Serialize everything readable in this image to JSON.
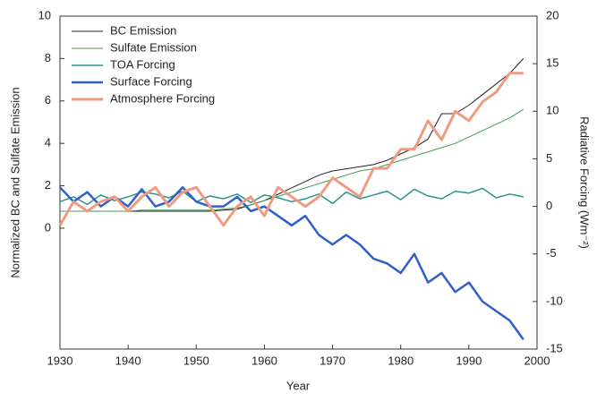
{
  "chart_data": {
    "type": "line",
    "xlabel": "Year",
    "ylabel": "Normalized BC and Sulfate Emission",
    "y2label": "Radiative Forcing (Wm⁻²)",
    "x": [
      1930,
      1932,
      1934,
      1936,
      1938,
      1940,
      1942,
      1944,
      1946,
      1948,
      1950,
      1952,
      1954,
      1956,
      1958,
      1960,
      1962,
      1964,
      1966,
      1968,
      1970,
      1972,
      1974,
      1976,
      1978,
      1980,
      1982,
      1984,
      1986,
      1988,
      1990,
      1992,
      1994,
      1996,
      1998
    ],
    "xlim": [
      1930,
      2000
    ],
    "xticks": [
      1930,
      1940,
      1950,
      1960,
      1970,
      1980,
      1990,
      2000
    ],
    "ylim": [
      -5.7,
      10
    ],
    "yticks": [
      0,
      2,
      4,
      6,
      8,
      10
    ],
    "y2lim": [
      -15,
      20
    ],
    "y2ticks": [
      -15,
      -10,
      -5,
      0,
      5,
      10,
      15,
      20
    ],
    "legend": "upper left",
    "series": [
      {
        "name": "BC Emission",
        "color": "#222222",
        "width": 1,
        "values": [
          0.8,
          0.8,
          0.8,
          0.8,
          0.8,
          0.8,
          0.8,
          0.8,
          0.8,
          0.8,
          0.8,
          0.8,
          0.85,
          0.9,
          1.1,
          1.3,
          1.6,
          1.9,
          2.2,
          2.5,
          2.7,
          2.8,
          2.9,
          3.0,
          3.2,
          3.5,
          3.8,
          4.2,
          5.4,
          5.4,
          5.8,
          6.3,
          6.8,
          7.3,
          8.0
        ]
      },
      {
        "name": "Sulfate Emission",
        "color": "#3f9a5a",
        "width": 1,
        "values": [
          0.8,
          0.8,
          0.8,
          0.8,
          0.8,
          0.8,
          0.85,
          0.85,
          0.85,
          0.85,
          0.85,
          0.85,
          0.9,
          0.95,
          1.1,
          1.3,
          1.5,
          1.7,
          1.9,
          2.1,
          2.3,
          2.5,
          2.7,
          2.8,
          3.0,
          3.2,
          3.4,
          3.6,
          3.8,
          4.0,
          4.3,
          4.6,
          4.9,
          5.2,
          5.6
        ]
      },
      {
        "name": "TOA Forcing",
        "color": "#2a9488",
        "width": 1.5,
        "axis": "y2",
        "values": [
          0.5,
          1.0,
          0.2,
          1.2,
          0.6,
          1.0,
          1.5,
          1.3,
          0.9,
          1.6,
          0.5,
          1.1,
          0.8,
          1.3,
          0.4,
          1.2,
          0.9,
          0.5,
          0.8,
          1.3,
          0.3,
          1.5,
          0.8,
          1.2,
          1.6,
          0.7,
          1.8,
          1.1,
          0.8,
          1.6,
          1.4,
          1.9,
          0.9,
          1.3,
          1.0
        ]
      },
      {
        "name": "Surface Forcing",
        "color": "#2f5fc8",
        "width": 2.5,
        "axis": "y2",
        "values": [
          2,
          0.5,
          1.5,
          0,
          1,
          0,
          1.8,
          0,
          0.5,
          2,
          0.5,
          0,
          0,
          1,
          -0.5,
          0,
          -1,
          -2,
          -1,
          -3,
          -4,
          -3,
          -4,
          -5.5,
          -6,
          -7,
          -5,
          -8,
          -7,
          -9,
          -8,
          -10,
          -11,
          -12,
          -14
        ]
      },
      {
        "name": "Atmosphere Forcing",
        "color": "#f09a80",
        "width": 3,
        "axis": "y2",
        "values": [
          -2,
          0.5,
          -0.5,
          0.5,
          1,
          -0.5,
          1,
          2,
          0,
          1.5,
          2,
          0,
          -2,
          0,
          1,
          -1,
          2,
          1,
          0,
          1,
          3,
          2,
          1,
          4,
          4,
          6,
          6,
          9,
          7,
          10,
          9,
          11,
          12,
          14,
          14
        ]
      }
    ]
  }
}
